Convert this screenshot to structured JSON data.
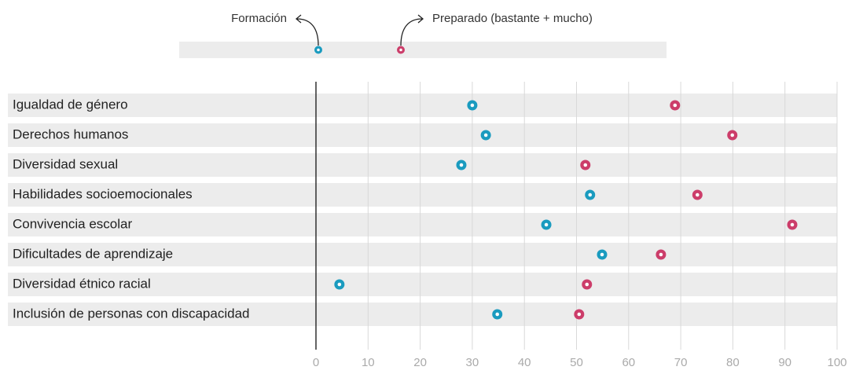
{
  "chart_data": {
    "type": "dot",
    "categories": [
      "Igualdad de género",
      "Derechos humanos",
      "Diversidad sexual",
      "Habilidades socioemocionales",
      "Convivencia escolar",
      "Dificultades de aprendizaje",
      "Diversidad étnico racial",
      "Inclusión de personas con discapacidad"
    ],
    "series": [
      {
        "name": "Formación",
        "color": "#1a9bbf",
        "values": [
          30.0,
          32.6,
          27.9,
          52.6,
          44.2,
          54.9,
          4.5,
          34.8
        ]
      },
      {
        "name": "Preparado (bastante + mucho)",
        "color": "#cc3d6a",
        "values": [
          68.9,
          79.9,
          51.7,
          73.2,
          91.4,
          66.2,
          52.0,
          50.5
        ]
      }
    ],
    "xlim": [
      0,
      100
    ],
    "xticks": [
      0,
      10,
      20,
      30,
      40,
      50,
      60,
      70,
      80,
      90,
      100
    ],
    "grid": true
  }
}
